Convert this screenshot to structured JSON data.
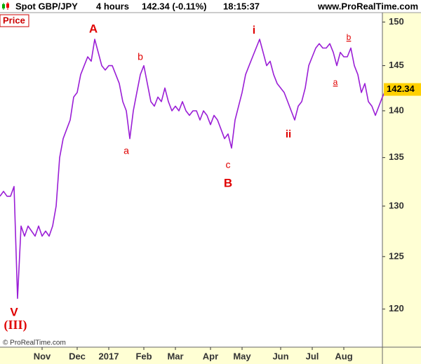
{
  "header": [
    "Spot GBP/JPY",
    "4 hours",
    "142.34 (-0.11%)",
    "18:15:37"
  ],
  "source": "www.ProRealTime.com",
  "panel_label": "Price",
  "copyright": "© ProRealTime.com",
  "chart_data": {
    "type": "line",
    "series": [
      {
        "name": "Spot GBP/JPY",
        "color": "#9a1ed6",
        "values": [
          131,
          131.5,
          131,
          131,
          132,
          121,
          128,
          127,
          128,
          127.5,
          127,
          128,
          127,
          127.5,
          127,
          128,
          130,
          135,
          137,
          138,
          139,
          141.5,
          142,
          144,
          145,
          146,
          145.5,
          148,
          146.5,
          145,
          144.5,
          145,
          145,
          144,
          143,
          141,
          140,
          137,
          140,
          142,
          144,
          145,
          143,
          141,
          140.5,
          141.5,
          141,
          142.5,
          141,
          140,
          140.5,
          140,
          141,
          140,
          139.5,
          140,
          140,
          139,
          140,
          139.5,
          138.5,
          139.5,
          139,
          138,
          137,
          137.5,
          136,
          139,
          140.5,
          142,
          144,
          145,
          146,
          147,
          148,
          146.5,
          145,
          145.5,
          144,
          143,
          142.5,
          142,
          141,
          140,
          139,
          140.5,
          141,
          142.5,
          145,
          146,
          147,
          147.5,
          147,
          147,
          147.5,
          146.5,
          145,
          146.5,
          146,
          146,
          147,
          145,
          144,
          142,
          143,
          141,
          140.5,
          139.5,
          140.5,
          141.5,
          142.34
        ]
      }
    ],
    "xlim": [
      0,
      109
    ],
    "xticks": [
      {
        "value": 12,
        "label": "Nov"
      },
      {
        "value": 22,
        "label": "Dec"
      },
      {
        "value": 31,
        "label": "2017"
      },
      {
        "value": 41,
        "label": "Feb"
      },
      {
        "value": 50,
        "label": "Mar"
      },
      {
        "value": 60,
        "label": "Apr"
      },
      {
        "value": 69,
        "label": "May"
      },
      {
        "value": 80,
        "label": "Jun"
      },
      {
        "value": 89,
        "label": "Jul"
      },
      {
        "value": 98,
        "label": "Aug"
      }
    ],
    "ylim": [
      116.5,
      151.1
    ],
    "yticks": [
      120,
      125,
      130,
      135,
      140,
      145,
      150
    ],
    "log_scale": true,
    "annotations": [
      "A",
      "b",
      "a",
      "c",
      "B",
      "i",
      "ii",
      "b",
      "a",
      "V",
      "(III)"
    ]
  }
}
